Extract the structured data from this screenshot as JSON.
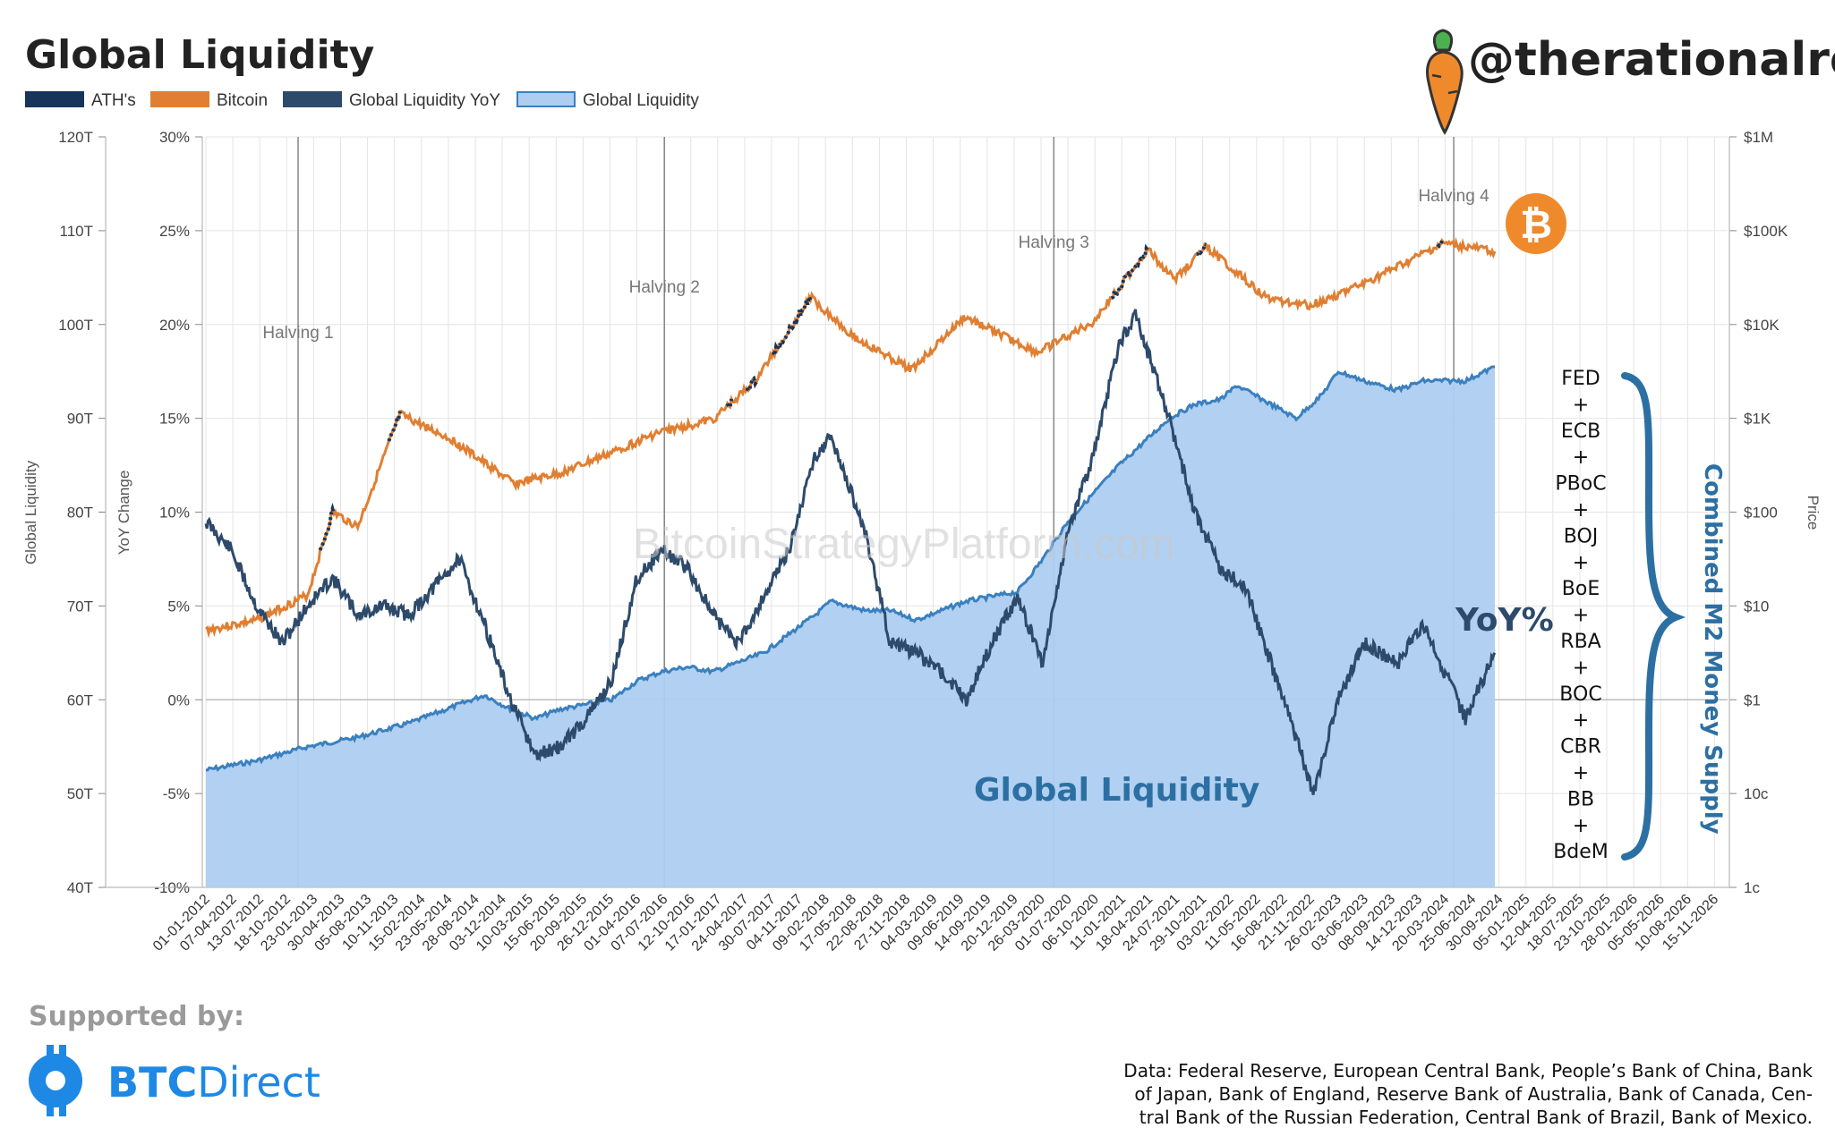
{
  "header": {
    "title": "Global Liquidity",
    "handle": "@therationalroot"
  },
  "legend": [
    {
      "label": "ATH's",
      "color": "#16345c",
      "style": "solid"
    },
    {
      "label": "Bitcoin",
      "color": "#e07f32",
      "style": "solid"
    },
    {
      "label": "Global Liquidity YoY",
      "color": "#2d4a6b",
      "style": "solid"
    },
    {
      "label": "Global Liquidity",
      "color": "#aecdf0",
      "style": "outlined"
    }
  ],
  "colors": {
    "ath": "#16345c",
    "bitcoin": "#e07f32",
    "yoy": "#2d4a6b",
    "liquidity_fill": "#aecdf0",
    "liquidity_line": "#3a80bf",
    "bitcoin_badge": "#ef8a2c"
  },
  "watermark": "BitcoinStrategyPlatform.com",
  "annotations": {
    "global_liquidity_label": "Global Liquidity",
    "yoy_label": "YoY%",
    "combined_label": "Combined M2 Money Supply",
    "banks": [
      "FED",
      "+",
      "ECB",
      "+",
      "PBoC",
      "+",
      "BOJ",
      "+",
      "BoE",
      "+",
      "RBA",
      "+",
      "BOC",
      "+",
      "CBR",
      "+",
      "BB",
      "+",
      "BdeM"
    ],
    "bitcoin_icon": "bitcoin-icon",
    "carrot_icon": "carrot-icon"
  },
  "footer": {
    "supported_by": "Supported by:",
    "sponsor_bold": "BTC",
    "sponsor_regular": "Direct",
    "source_lines": [
      "Data: Federal Reserve, European Central Bank, People’s Bank of China, Bank",
      "of Japan, Bank of England, Reserve Bank of Australia, Bank of Canada, Cen-",
      "tral Bank of the Russian Federation, Central Bank of Brazil, Bank of Mexico."
    ]
  },
  "chart_data": {
    "type": "line",
    "title": "Global Liquidity",
    "x_ticks": [
      "01-01-2012",
      "07-04-2012",
      "13-07-2012",
      "18-10-2012",
      "23-01-2013",
      "30-04-2013",
      "05-08-2013",
      "10-11-2013",
      "15-02-2014",
      "23-05-2014",
      "28-08-2014",
      "03-12-2014",
      "10-03-2015",
      "15-06-2015",
      "20-09-2015",
      "26-12-2015",
      "01-04-2016",
      "07-07-2016",
      "12-10-2016",
      "17-01-2017",
      "24-04-2017",
      "30-07-2017",
      "04-11-2017",
      "09-02-2018",
      "17-05-2018",
      "22-08-2018",
      "27-11-2018",
      "04-03-2019",
      "09-06-2019",
      "14-09-2019",
      "20-12-2019",
      "26-03-2020",
      "01-07-2020",
      "06-10-2020",
      "11-01-2021",
      "18-04-2021",
      "24-07-2021",
      "29-10-2021",
      "03-02-2022",
      "11-05-2022",
      "16-08-2022",
      "21-11-2022",
      "26-02-2023",
      "03-06-2023",
      "08-09-2023",
      "14-12-2023",
      "20-03-2024",
      "25-06-2024",
      "30-09-2024",
      "05-01-2025",
      "12-04-2025",
      "18-07-2025",
      "23-10-2025",
      "28-01-2026",
      "05-05-2026",
      "10-08-2026",
      "15-11-2026"
    ],
    "x_range": [
      "2012-01-01",
      "2027-01-01"
    ],
    "y_left": {
      "label": "Global Liquidity",
      "ticks": [
        "40T",
        "50T",
        "60T",
        "70T",
        "80T",
        "90T",
        "100T",
        "110T",
        "120T"
      ],
      "range": [
        40,
        120
      ],
      "unit": "T"
    },
    "y_yoy": {
      "label": "YoY Change",
      "ticks": [
        "-10%",
        "-5%",
        "0%",
        "5%",
        "10%",
        "15%",
        "20%",
        "25%",
        "30%"
      ],
      "range": [
        -10,
        30
      ],
      "unit": "%"
    },
    "y_right": {
      "label": "Price",
      "scale": "log",
      "ticks": [
        "1c",
        "10c",
        "$1",
        "$10",
        "$100",
        "$1K",
        "$10K",
        "$100K",
        "$1M"
      ],
      "range": [
        0.01,
        1000000
      ]
    },
    "grid": true,
    "legend_position": "top-left",
    "halvings": [
      {
        "label": "Halving 1",
        "date": "2012-11-28"
      },
      {
        "label": "Halving 2",
        "date": "2016-07-09"
      },
      {
        "label": "Halving 3",
        "date": "2020-05-11"
      },
      {
        "label": "Halving 4",
        "date": "2024-04-20"
      }
    ],
    "series": [
      {
        "name": "Global Liquidity",
        "axis": "left",
        "points": [
          [
            "2012-01-01",
            52.5
          ],
          [
            "2012-07-01",
            53.5
          ],
          [
            "2013-01-01",
            55
          ],
          [
            "2013-07-01",
            56
          ],
          [
            "2014-01-01",
            57.5
          ],
          [
            "2014-07-01",
            59.5
          ],
          [
            "2014-10-01",
            60.5
          ],
          [
            "2015-01-01",
            59
          ],
          [
            "2015-04-01",
            58
          ],
          [
            "2015-07-01",
            59
          ],
          [
            "2015-10-01",
            59.5
          ],
          [
            "2016-01-01",
            60
          ],
          [
            "2016-04-01",
            62
          ],
          [
            "2016-07-01",
            63
          ],
          [
            "2016-10-01",
            63.5
          ],
          [
            "2017-01-01",
            63
          ],
          [
            "2017-07-01",
            65
          ],
          [
            "2018-01-01",
            69
          ],
          [
            "2018-03-01",
            70.5
          ],
          [
            "2018-07-01",
            69.5
          ],
          [
            "2018-10-01",
            69.5
          ],
          [
            "2019-01-01",
            68.5
          ],
          [
            "2019-07-01",
            70.5
          ],
          [
            "2020-01-01",
            71.5
          ],
          [
            "2020-04-01",
            75
          ],
          [
            "2020-07-01",
            79
          ],
          [
            "2021-01-01",
            85
          ],
          [
            "2021-07-01",
            90
          ],
          [
            "2021-10-01",
            91.5
          ],
          [
            "2022-01-01",
            92
          ],
          [
            "2022-03-01",
            93.5
          ],
          [
            "2022-06-01",
            92
          ],
          [
            "2022-10-01",
            90
          ],
          [
            "2023-01-01",
            92.5
          ],
          [
            "2023-03-01",
            95
          ],
          [
            "2023-06-01",
            94
          ],
          [
            "2023-10-01",
            93
          ],
          [
            "2024-01-01",
            94
          ],
          [
            "2024-06-01",
            94
          ],
          [
            "2024-09-15",
            95.5
          ]
        ]
      },
      {
        "name": "Global Liquidity YoY",
        "axis": "yoy",
        "points": [
          [
            "2012-01-01",
            9.5
          ],
          [
            "2012-04-01",
            8
          ],
          [
            "2012-07-01",
            5
          ],
          [
            "2012-10-01",
            3
          ],
          [
            "2013-01-01",
            5
          ],
          [
            "2013-04-01",
            6.5
          ],
          [
            "2013-07-01",
            4.5
          ],
          [
            "2013-10-01",
            5
          ],
          [
            "2014-01-01",
            4.5
          ],
          [
            "2014-04-01",
            6
          ],
          [
            "2014-07-01",
            7.5
          ],
          [
            "2014-10-01",
            4
          ],
          [
            "2015-01-01",
            0
          ],
          [
            "2015-04-01",
            -3
          ],
          [
            "2015-07-01",
            -2.5
          ],
          [
            "2015-10-01",
            -1
          ],
          [
            "2016-01-01",
            1
          ],
          [
            "2016-04-01",
            6.5
          ],
          [
            "2016-07-01",
            8
          ],
          [
            "2016-10-01",
            7
          ],
          [
            "2017-01-01",
            4.5
          ],
          [
            "2017-04-01",
            3
          ],
          [
            "2017-07-01",
            5.5
          ],
          [
            "2017-10-01",
            8
          ],
          [
            "2018-01-01",
            13
          ],
          [
            "2018-03-01",
            14
          ],
          [
            "2018-07-01",
            9
          ],
          [
            "2018-10-01",
            3
          ],
          [
            "2019-01-01",
            2.5
          ],
          [
            "2019-04-01",
            1.5
          ],
          [
            "2019-07-01",
            0
          ],
          [
            "2019-10-01",
            3
          ],
          [
            "2020-01-01",
            5.5
          ],
          [
            "2020-04-01",
            2
          ],
          [
            "2020-07-01",
            9
          ],
          [
            "2020-10-01",
            13
          ],
          [
            "2021-01-01",
            19
          ],
          [
            "2021-03-01",
            20.5
          ],
          [
            "2021-07-01",
            15
          ],
          [
            "2021-10-01",
            10
          ],
          [
            "2022-01-01",
            7
          ],
          [
            "2022-04-01",
            6
          ],
          [
            "2022-07-01",
            2
          ],
          [
            "2022-10-01",
            -2
          ],
          [
            "2022-12-01",
            -5
          ],
          [
            "2023-03-01",
            0
          ],
          [
            "2023-06-01",
            3
          ],
          [
            "2023-10-01",
            2
          ],
          [
            "2024-01-01",
            4
          ],
          [
            "2024-04-01",
            1
          ],
          [
            "2024-06-01",
            -1
          ],
          [
            "2024-09-15",
            2.5
          ]
        ]
      },
      {
        "name": "Bitcoin",
        "axis": "right",
        "points": [
          [
            "2012-01-01",
            5.5
          ],
          [
            "2012-07-01",
            7
          ],
          [
            "2013-01-01",
            13
          ],
          [
            "2013-04-01",
            100
          ],
          [
            "2013-07-01",
            70
          ],
          [
            "2013-11-30",
            1100
          ],
          [
            "2014-06-01",
            600
          ],
          [
            "2015-01-15",
            200
          ],
          [
            "2015-07-01",
            260
          ],
          [
            "2016-01-01",
            430
          ],
          [
            "2016-06-15",
            700
          ],
          [
            "2017-01-01",
            970
          ],
          [
            "2017-06-01",
            2500
          ],
          [
            "2017-12-17",
            19500
          ],
          [
            "2018-06-01",
            7000
          ],
          [
            "2018-12-15",
            3300
          ],
          [
            "2019-06-26",
            12000
          ],
          [
            "2020-03-13",
            5000
          ],
          [
            "2020-10-01",
            10700
          ],
          [
            "2021-04-14",
            63000
          ],
          [
            "2021-07-20",
            30000
          ],
          [
            "2021-11-10",
            68000
          ],
          [
            "2022-06-18",
            19000
          ],
          [
            "2022-11-21",
            16000
          ],
          [
            "2023-06-01",
            27000
          ],
          [
            "2024-03-14",
            73000
          ],
          [
            "2024-09-15",
            60000
          ]
        ]
      }
    ]
  }
}
